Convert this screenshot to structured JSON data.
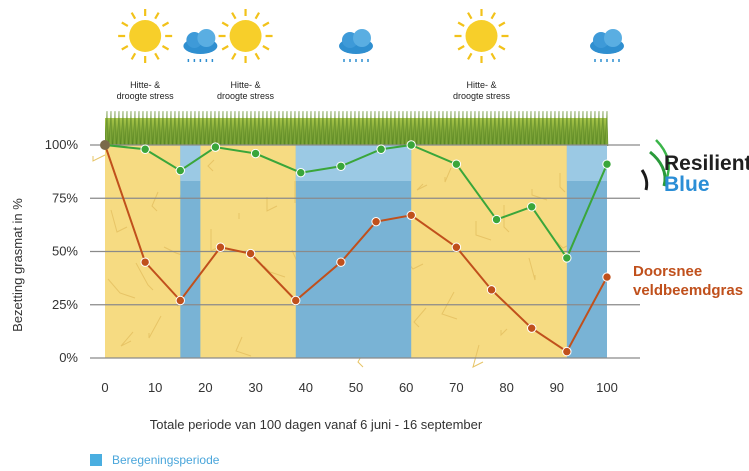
{
  "chart_data": {
    "type": "line",
    "xlabel": "Totale periode van 100 dagen vanaf 6 juni - 16 september",
    "ylabel": "Bezetting grasmat in %",
    "xlim": [
      0,
      100
    ],
    "ylim": [
      0,
      100
    ],
    "x_ticks": [
      "0",
      "10",
      "20",
      "30",
      "40",
      "50",
      "60",
      "70",
      "80",
      "90",
      "100"
    ],
    "y_ticks": [
      "0%",
      "25%",
      "50%",
      "75%",
      "100%"
    ],
    "grid": true,
    "series": [
      {
        "name": "",
        "color": "#3aa63a",
        "points": [
          [
            0,
            100
          ],
          [
            8,
            98
          ],
          [
            15,
            88
          ],
          [
            22,
            99
          ],
          [
            30,
            96
          ],
          [
            39,
            87
          ],
          [
            47,
            90
          ],
          [
            55,
            98
          ],
          [
            61,
            100
          ],
          [
            70,
            91
          ],
          [
            78,
            65
          ],
          [
            85,
            71
          ],
          [
            92,
            47
          ],
          [
            100,
            91
          ]
        ]
      },
      {
        "name": "Doorsnee veldbeemdgras",
        "color": "#c0501c",
        "points": [
          [
            0,
            100
          ],
          [
            8,
            45
          ],
          [
            15,
            27
          ],
          [
            23,
            52
          ],
          [
            29,
            49
          ],
          [
            38,
            27
          ],
          [
            47,
            45
          ],
          [
            54,
            64
          ],
          [
            61,
            67
          ],
          [
            70,
            52
          ],
          [
            77,
            32
          ],
          [
            85,
            14
          ],
          [
            92,
            3
          ],
          [
            100,
            38
          ]
        ]
      }
    ],
    "irrigation_periods": [
      [
        15,
        19
      ],
      [
        38,
        61
      ],
      [
        92,
        100
      ]
    ],
    "sun_days": [
      8,
      28,
      75
    ],
    "rain_days": [
      19,
      50,
      100
    ],
    "stress_labels": [
      {
        "day": 8,
        "lines": [
          "Hitte- &",
          "droogte stress"
        ]
      },
      {
        "day": 28,
        "lines": [
          "Hitte- &",
          "droogte stress"
        ]
      },
      {
        "day": 75,
        "lines": [
          "Hitte- &",
          "droogte stress"
        ]
      }
    ],
    "legend": {
      "label": "Beregeningsperiode",
      "color": "#4aaee0",
      "placement": "bottom-left"
    }
  },
  "colors": {
    "dry": "#f6db82",
    "wet": "#79b3d5",
    "grass": "#6f9d2c",
    "green_series": "#3aa63a",
    "orange_series": "#c0501c"
  },
  "brand": {
    "line1": "Resilient",
    "line2": "Blue"
  }
}
